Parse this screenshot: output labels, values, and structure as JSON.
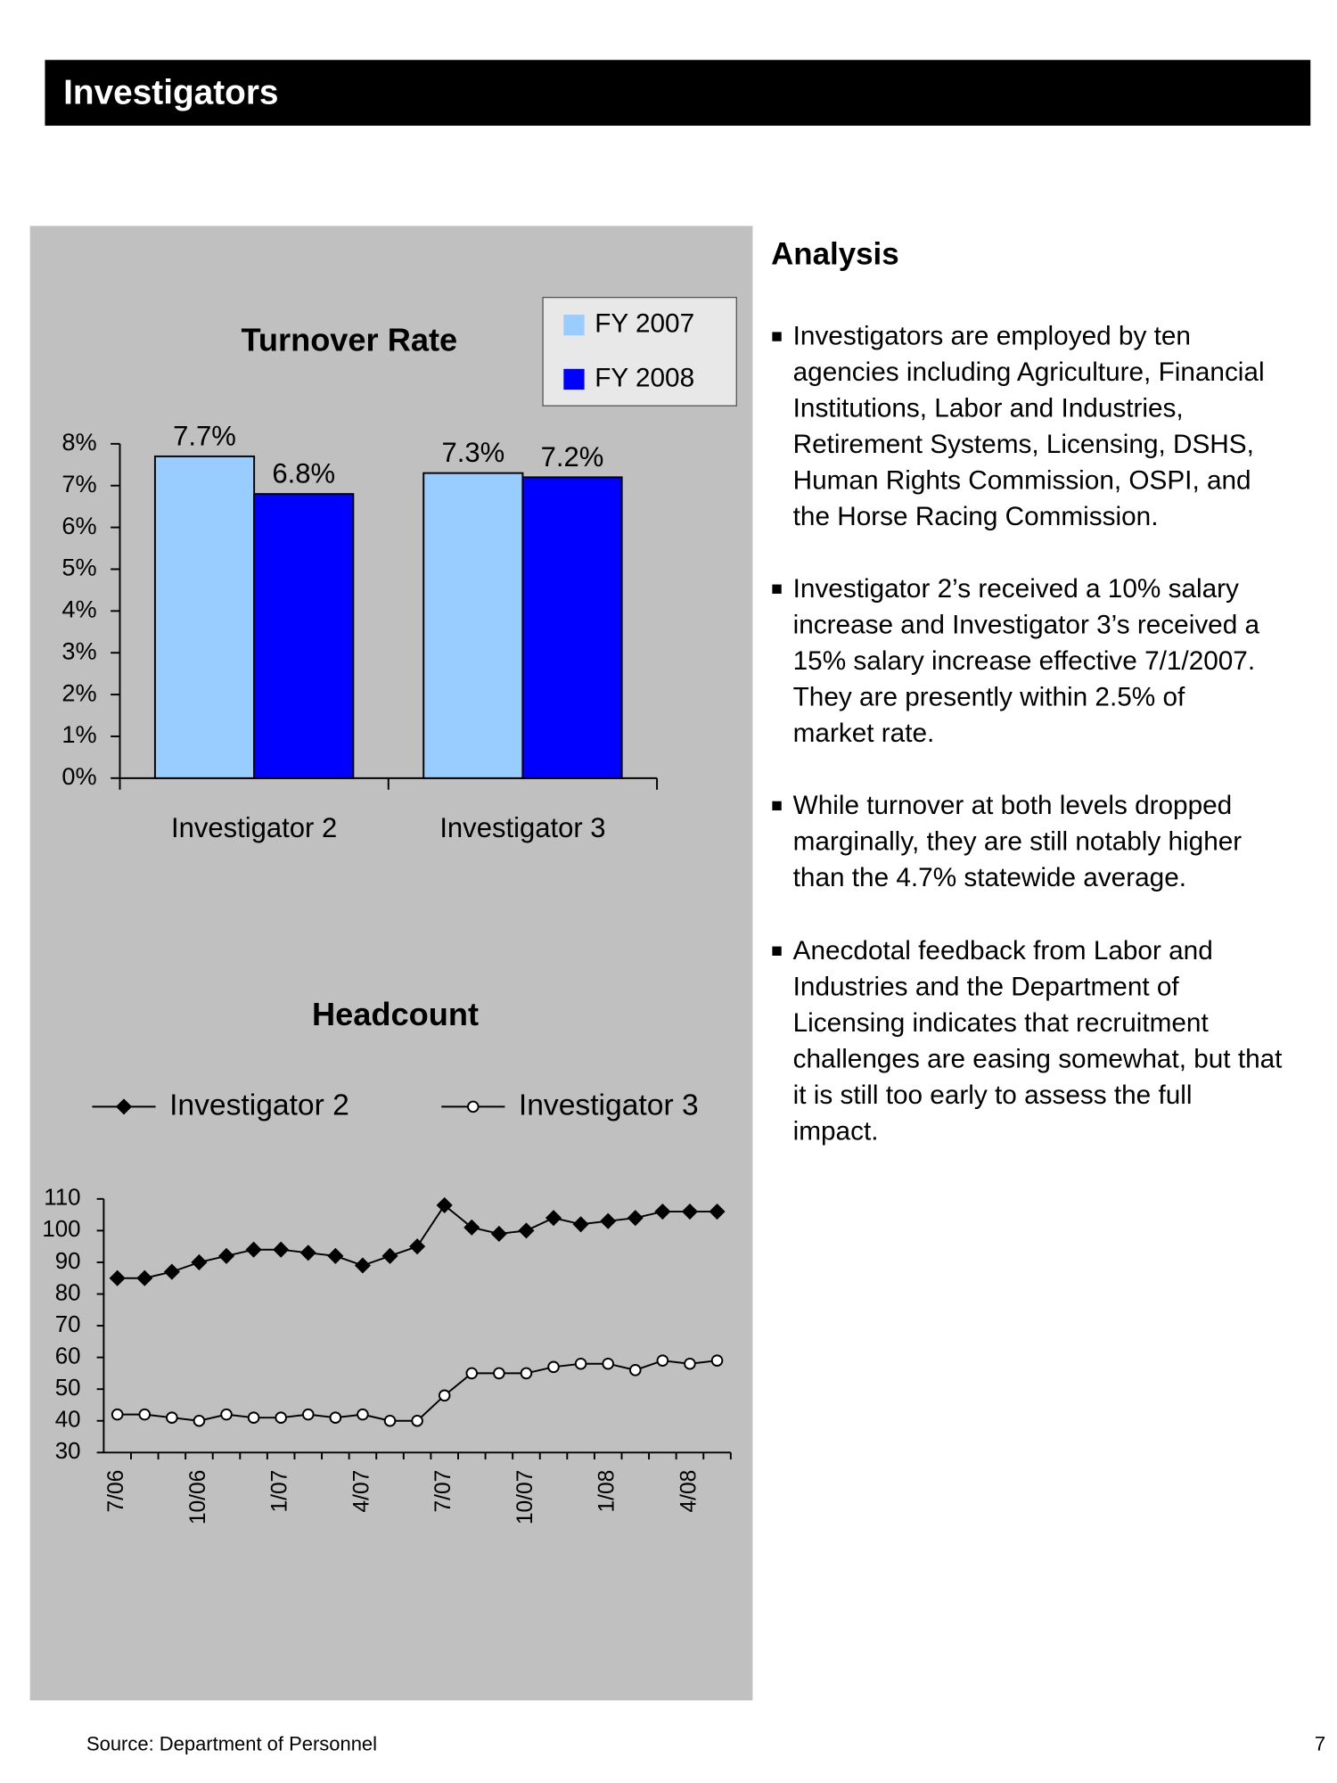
{
  "header": {
    "title": "Investigators"
  },
  "chart_data": [
    {
      "type": "bar",
      "title": "Turnover Rate",
      "categories": [
        "Investigator 2",
        "Investigator 3"
      ],
      "series": [
        {
          "name": "FY 2007",
          "color": "#99ccff",
          "values": [
            7.7,
            7.3
          ],
          "value_labels": [
            "7.7%",
            "7.3%"
          ]
        },
        {
          "name": "FY 2008",
          "color": "#0000ff",
          "values": [
            6.8,
            7.2
          ],
          "value_labels": [
            "6.8%",
            "7.2%"
          ]
        }
      ],
      "ylim": [
        0,
        8
      ],
      "yticks": [
        {
          "value": 0,
          "label": "0%"
        },
        {
          "value": 1,
          "label": "1%"
        },
        {
          "value": 2,
          "label": "2%"
        },
        {
          "value": 3,
          "label": "3%"
        },
        {
          "value": 4,
          "label": "4%"
        },
        {
          "value": 5,
          "label": "5%"
        },
        {
          "value": 6,
          "label": "6%"
        },
        {
          "value": 7,
          "label": "7%"
        },
        {
          "value": 8,
          "label": "8%"
        }
      ],
      "legend": "top-right",
      "grid": false
    },
    {
      "type": "line",
      "title": "Headcount",
      "categories": [
        "7/06",
        null,
        null,
        "10/06",
        null,
        null,
        "1/07",
        null,
        null,
        "4/07",
        null,
        null,
        "7/07",
        null,
        null,
        "10/07",
        null,
        null,
        "1/08",
        null,
        null,
        "4/08",
        null
      ],
      "series": [
        {
          "name": "Investigator 2",
          "color": "#000000",
          "marker": "diamond",
          "values": [
            85,
            85,
            87,
            90,
            92,
            94,
            94,
            93,
            92,
            89,
            92,
            95,
            108,
            101,
            99,
            100,
            104,
            102,
            103,
            104,
            106,
            106,
            106
          ]
        },
        {
          "name": "Investigator 3",
          "color": "#000000",
          "marker": "circle",
          "values": [
            42,
            42,
            41,
            40,
            42,
            41,
            41,
            42,
            41,
            42,
            40,
            40,
            48,
            55,
            55,
            55,
            57,
            58,
            58,
            56,
            59,
            58,
            59
          ]
        }
      ],
      "ylim": [
        30,
        110
      ],
      "yticks": [
        30,
        40,
        50,
        60,
        70,
        80,
        90,
        100,
        110
      ],
      "legend": "top",
      "grid": false
    }
  ],
  "analysis": {
    "title": "Analysis",
    "bullets": [
      [
        "Investigators are employed by ten",
        "agencies including Agriculture, Financial",
        "Institutions, Labor and Industries,",
        "Retirement Systems, Licensing, DSHS,",
        "Human Rights Commission, OSPI, and",
        "the Horse Racing Commission."
      ],
      [
        "Investigator 2’s received a 10% salary",
        "increase and Investigator 3’s received a",
        "15% salary increase effective 7/1/2007.",
        "They are presently within 2.5% of",
        "market rate."
      ],
      [
        "While turnover at both levels dropped",
        "marginally, they are still notably higher",
        "than the 4.7% statewide average."
      ],
      [
        "Anecdotal feedback from Labor and",
        "Industries and the Department of",
        "Licensing indicates that recruitment",
        "challenges are easing somewhat, but that",
        "it is still too early to assess the full",
        "impact."
      ]
    ]
  },
  "footer": {
    "source": "Source:  Department of Personnel",
    "page": "7"
  }
}
